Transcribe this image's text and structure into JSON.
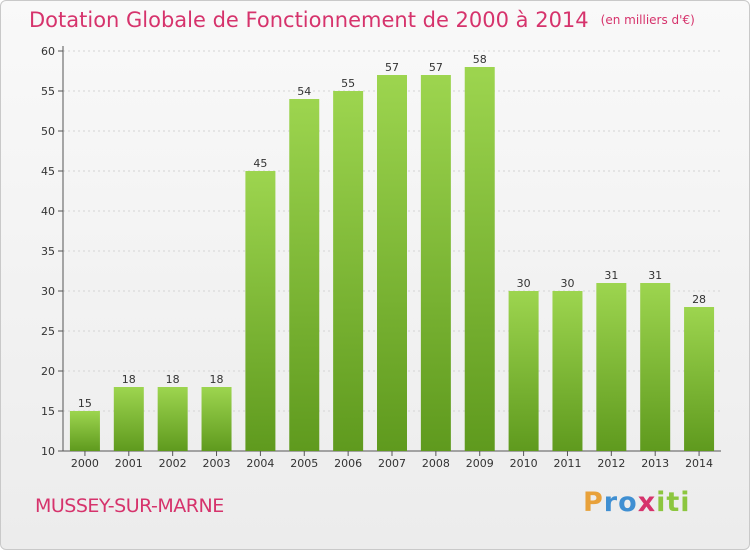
{
  "title": {
    "main": "Dotation Globale de Fonctionnement de 2000 à 2014",
    "unit": "(en milliers d'€)"
  },
  "place": "MUSSEY-SUR-MARNE",
  "brand": {
    "letters": [
      "P",
      "r",
      "o",
      "x",
      "i",
      "t",
      "i"
    ],
    "colors": [
      "#e8a13a",
      "#3f8fd2",
      "#3f8fd2",
      "#d6336c",
      "#8cc63f",
      "#8cc63f",
      "#8cc63f"
    ]
  },
  "colors": {
    "title": "#d6336c",
    "bar_top": "#9dd54f",
    "bar_bottom": "#5f9a1e",
    "grid": "#d4d4d4"
  },
  "chart_data": {
    "type": "bar",
    "categories": [
      "2000",
      "2001",
      "2002",
      "2003",
      "2004",
      "2005",
      "2006",
      "2007",
      "2008",
      "2009",
      "2010",
      "2011",
      "2012",
      "2013",
      "2014"
    ],
    "values": [
      15,
      18,
      18,
      18,
      45,
      54,
      55,
      57,
      57,
      58,
      30,
      30,
      31,
      31,
      28
    ],
    "title": "Dotation Globale de Fonctionnement de 2000 à 2014",
    "ylim": [
      10,
      60
    ],
    "yticks": [
      10,
      15,
      20,
      25,
      30,
      35,
      40,
      45,
      50,
      55,
      60
    ],
    "grid": true,
    "data_labels": true
  }
}
